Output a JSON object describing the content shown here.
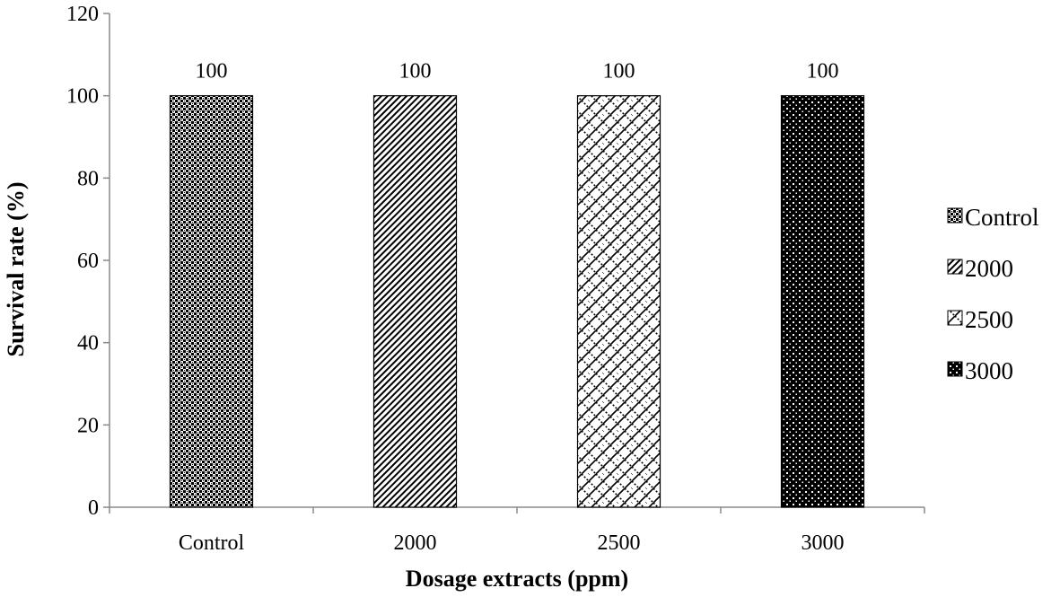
{
  "chart_data": {
    "type": "bar",
    "title": "",
    "xlabel": "Dosage extracts (ppm)",
    "ylabel": "Survival rate (%)",
    "ylim": [
      0,
      120
    ],
    "yticks": [
      0,
      20,
      40,
      60,
      80,
      100,
      120
    ],
    "grid": false,
    "legend_position": "right",
    "categories": [
      "Control",
      "2000",
      "2500",
      "3000"
    ],
    "series": [
      {
        "name": "Control",
        "values": [
          100,
          null,
          null,
          null
        ],
        "pattern": "checker",
        "color": "#000000"
      },
      {
        "name": "2000",
        "values": [
          null,
          100,
          null,
          null
        ],
        "pattern": "diagonal",
        "color": "#000000"
      },
      {
        "name": "2500",
        "values": [
          null,
          null,
          100,
          null
        ],
        "pattern": "weave",
        "color": "#000000"
      },
      {
        "name": "3000",
        "values": [
          null,
          null,
          null,
          100
        ],
        "pattern": "dots",
        "color": "#000000"
      }
    ],
    "data_labels": [
      "100",
      "100",
      "100",
      "100"
    ]
  }
}
